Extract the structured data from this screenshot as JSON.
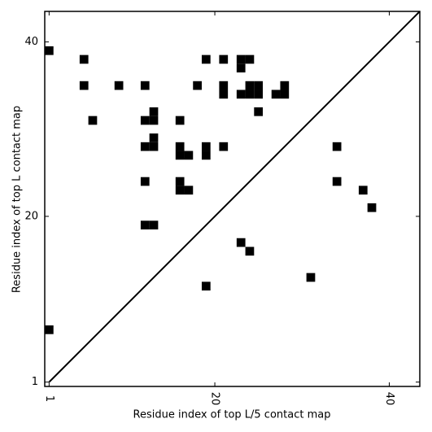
{
  "chart_data": {
    "type": "scatter",
    "marker": "square",
    "color": "#000000",
    "xlabel": "Residue index of top L/5 contact map",
    "ylabel": "Residue index of top L contact map",
    "x": [
      1,
      5,
      5,
      9,
      6,
      12,
      12,
      13,
      13,
      12,
      13,
      13,
      12,
      12,
      13,
      16,
      16,
      16,
      17,
      16,
      16,
      17,
      18,
      19,
      19,
      19,
      19,
      21,
      21,
      21,
      21,
      23,
      24,
      23,
      23,
      24,
      24,
      25,
      25,
      25,
      27,
      28,
      28,
      23,
      24,
      31,
      34,
      34,
      37,
      38,
      1
    ],
    "y": [
      39,
      38,
      35,
      35,
      31,
      35,
      31,
      31,
      32,
      28,
      28,
      29,
      24,
      19,
      19,
      31,
      28,
      27,
      27,
      24,
      23,
      23,
      35,
      38,
      28,
      27,
      12,
      38,
      35,
      34,
      28,
      38,
      38,
      37,
      34,
      34,
      35,
      35,
      34,
      32,
      34,
      34,
      35,
      17,
      16,
      13,
      28,
      24,
      23,
      21,
      7
    ],
    "xlim": [
      0.5,
      43.5
    ],
    "ylim": [
      0.5,
      43.5
    ],
    "xticks": [
      1,
      20,
      40
    ],
    "yticks": [
      1,
      20,
      40
    ]
  }
}
